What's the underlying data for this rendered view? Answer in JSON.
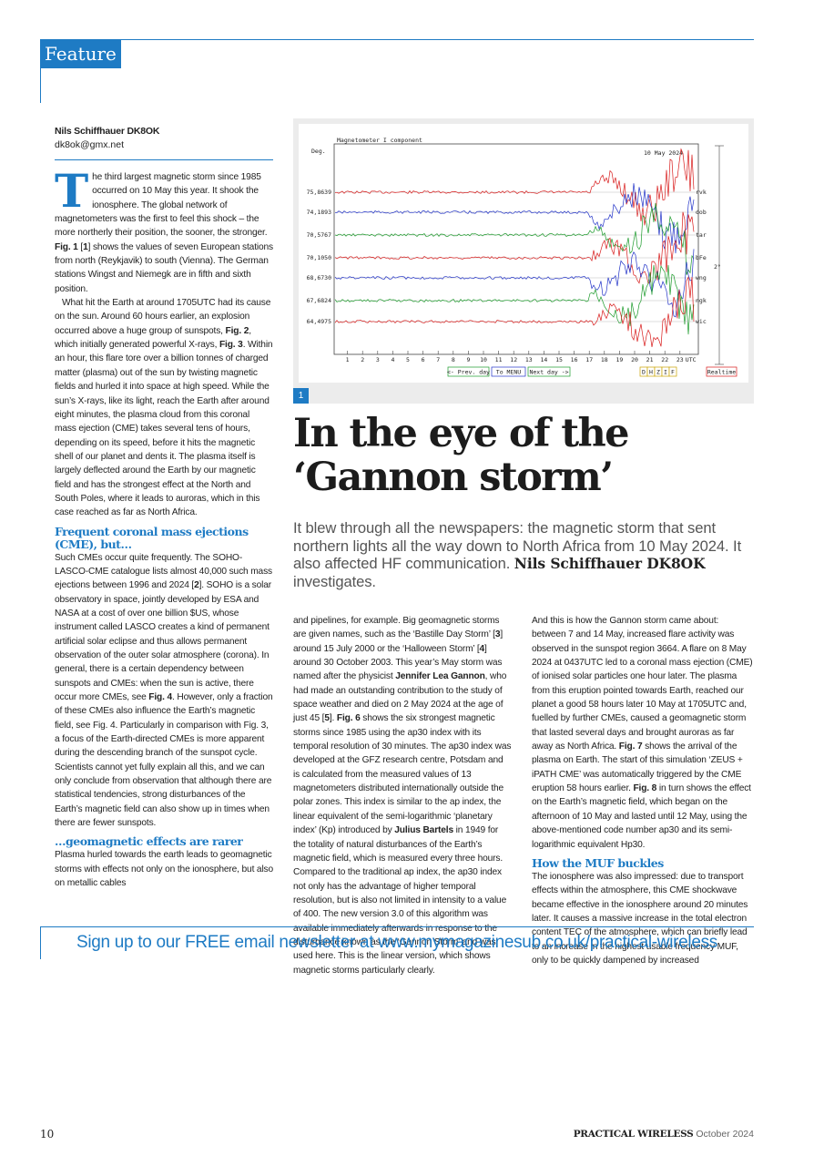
{
  "header": {
    "section": "Feature"
  },
  "author": {
    "name": "Nils Schiffhauer DK8OK",
    "email": "dk8ok@gmx.net"
  },
  "figure": {
    "badge": "1",
    "title": "Magnetometer I component",
    "unit": "Deg.",
    "date": "10 May 2024",
    "baselines": [
      "75,8639",
      "74,1893",
      "70,5767",
      "70,1050",
      "68,6730",
      "67,6824",
      "64,4975"
    ],
    "stations": [
      "rvk",
      "dob",
      "tar",
      "bFe",
      "wng",
      "ngk",
      "wic"
    ],
    "scale": "2°",
    "x_ticks": [
      "1",
      "2",
      "3",
      "4",
      "5",
      "6",
      "7",
      "8",
      "9",
      "10",
      "11",
      "12",
      "13",
      "14",
      "15",
      "16",
      "17",
      "18",
      "19",
      "20",
      "21",
      "22",
      "23"
    ],
    "x_unit": "UTC",
    "buttons": [
      "<- Prev. day",
      "To MENU",
      "Next day ->"
    ],
    "components": [
      "D",
      "H",
      "Z",
      "I",
      "F"
    ],
    "realtime": "Realtime"
  },
  "headline": {
    "title": "In the eye of the ‘Gannon storm’",
    "standfirst": "It blew through all the newspapers: the magnetic storm that sent northern lights all the way down to North Africa from 10 May 2024. It also affected HF communication.",
    "byline": "Nils Schiffhauer DK8OK",
    "byline_end": " investigates."
  },
  "columns": {
    "left": [
      {
        "dropcap": "T",
        "runs": [
          "he third largest magnetic storm since 1985 occurred on 10 May this year. It shook the ionosphere. The global network of magnetometers was the first to feel this shock – the more northerly their position, the sooner, the stronger. ",
          {
            "bold": "Fig. 1"
          },
          " [",
          {
            "bold": "1"
          },
          "] shows the values of seven European stations from north (Reykjavik) to south (Vienna). The German stations Wingst and Niemegk are in fifth and sixth position."
        ]
      },
      {
        "runs": [
          "What hit the Earth at around 1705UTC had its cause on the sun. Around 60 hours earlier, an explosion occurred above a huge group of sunspots, ",
          {
            "bold": "Fig. 2"
          },
          ", which initially generated powerful X-rays, ",
          {
            "bold": "Fig. 3"
          },
          ". Within an hour, this flare tore over a billion tonnes of charged matter (plasma) out of the sun by twisting magnetic fields and hurled it into space at high speed. While the sun’s X-rays, like its light, reach the Earth after around eight minutes, the plasma cloud from this coronal mass ejection (CME) takes several tens of hours, depending on its speed, before it hits the magnetic shell of our planet and dents it. The plasma itself is largely deflected around the Earth by our magnetic field and has the strongest effect at the North and South Poles, where it leads to auroras, which in this case reached as far as North Africa."
        ]
      },
      {
        "heading": "Frequent coronal mass ejections (CME), but…"
      },
      {
        "runs": [
          "Such CMEs occur quite frequently. The SOHO-LASCO-CME catalogue lists almost 40,000 such mass ejections between 1996 and 2024 [",
          {
            "bold": "2"
          },
          "]. SOHO is a solar observatory in space, jointly developed by ESA and NASA at a cost of over one billion $US, whose instrument called LASCO creates a kind of permanent artificial solar eclipse and thus allows permanent observation of the outer solar atmosphere (corona). In general, there is a certain dependency between sunspots and CMEs: when the sun is active, there occur more CMEs, see ",
          {
            "bold": "Fig. 4"
          },
          ". However, only a fraction of these CMEs also influence the Earth’s magnetic field, see Fig. 4. Particularly in comparison with Fig. 3, a focus of the Earth-directed CMEs is more apparent during the descending branch of the sunspot cycle. Scientists cannot yet fully explain all this, and we can only conclude from observation that although there are statistical tendencies, strong disturbances of the Earth’s magnetic field can also show up in times when there are fewer sunspots."
        ]
      },
      {
        "heading": "…geomagnetic effects are rarer"
      },
      {
        "runs": [
          "Plasma hurled towards the earth leads to geomagnetic storms with effects not only on the ionosphere, but also on metallic cables"
        ]
      }
    ],
    "middle": [
      {
        "runs": [
          "and pipelines, for example. Big geomagnetic storms are given names, such as the ‘Bastille Day Storm’ [",
          {
            "bold": "3"
          },
          "] around 15 July 2000 or the ‘Halloween Storm’ [",
          {
            "bold": "4"
          },
          "] around 30 October 2003. This year’s May storm was named after the physicist ",
          {
            "bold": "Jennifer Lea Gannon"
          },
          ", who had made an outstanding contribution to the study of space weather and died on 2 May 2024 at the age of just 45 [",
          {
            "bold": "5"
          },
          "]. ",
          {
            "bold": "Fig. 6"
          },
          " shows the six strongest magnetic storms since 1985 using the ap30 index with its temporal resolution of 30 minutes. The ap30 index was developed at the GFZ research centre, Potsdam and is calculated from the measured values of 13 magnetometers distributed internationally outside the polar zones. This index is similar to the ap index, the linear equivalent of the semi-logarithmic ‘planetary index’ (Kp) introduced by ",
          {
            "bold": "Julius Bartels"
          },
          " in 1949 for the totality of natural disturbances of the Earth’s magnetic field, which is measured every three hours. Compared to the traditional ap index, the ap30 index not only has the advantage of higher temporal resolution, but is also not limited in intensity to a value of 400. The new version 3.0 of this algorithm was available immediately afterwards in response to the disturbance known as the ‘Gannon Storm’ and was used here. This is the linear version, which shows magnetic storms particularly clearly."
        ]
      }
    ],
    "right": [
      {
        "runs": [
          "And this is how the Gannon storm came about: between 7 and 14 May, increased flare activity was observed in the sunspot region 3664. A flare on 8 May 2024 at 0437UTC led to a coronal mass ejection (CME) of ionised solar particles one hour later. The plasma from this eruption pointed towards Earth, reached our planet a good 58 hours later 10 May at 1705UTC and, fuelled by further CMEs, caused a geomagnetic storm that lasted several days and brought auroras as far away as North Africa. ",
          {
            "bold": "Fig. 7"
          },
          " shows the arrival of the plasma on Earth. The start of this simulation ‘ZEUS + iPATH CME’ was automatically triggered by the CME eruption 58 hours earlier. ",
          {
            "bold": "Fig. 8"
          },
          " in turn shows the effect on the Earth’s magnetic field, which began on the afternoon of 10 May and lasted until 12 May, using the above-mentioned code number ap30 and its semi-logarithmic equivalent Hp30."
        ]
      },
      {
        "heading": "How the MUF buckles"
      },
      {
        "runs": [
          "The ionosphere was also impressed: due to transport effects within the atmosphere, this CME shockwave became effective in the ionosphere around 20 minutes later. It causes a massive increase in the total electron content TEC of the atmosphere, which can briefly lead to an increase in the highest usable frequency MUF, only to be quickly dampened by increased"
        ]
      }
    ]
  },
  "newsletter": "Sign up to our FREE email newsletter at www.mymagazinesub.co.uk/practical-wireless",
  "footer": {
    "page": "10",
    "magazine": "PRACTICAL WIRELESS",
    "issue": "October 2024"
  }
}
